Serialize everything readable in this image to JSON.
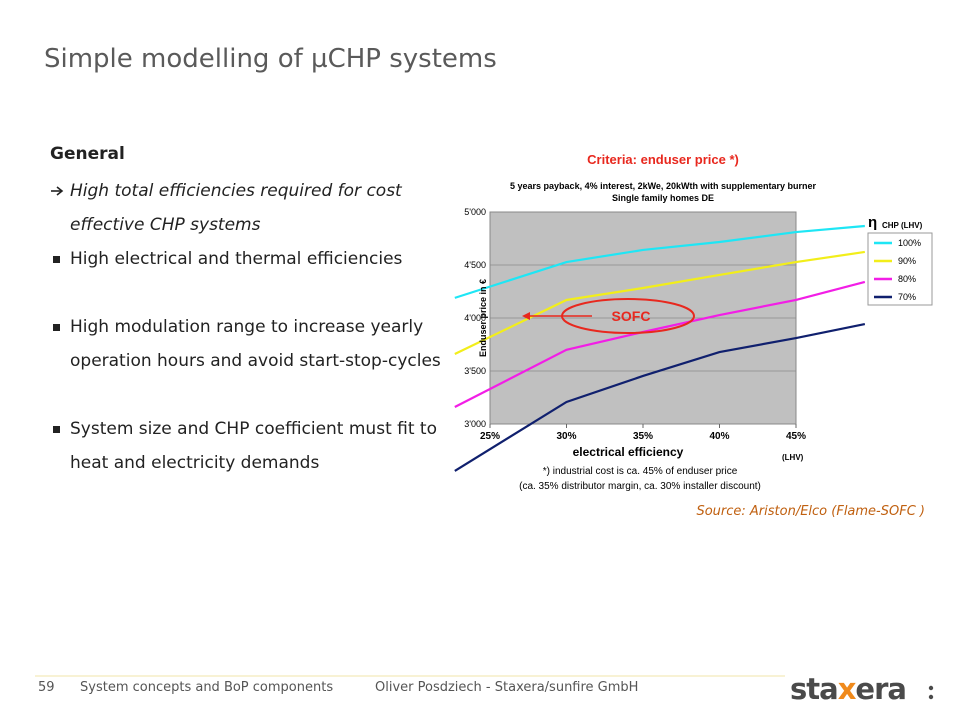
{
  "slide": {
    "title": "Simple modelling of µCHP systems",
    "heading": "General",
    "bullets": [
      "High total efficiencies required for cost effective CHP systems",
      "High electrical and thermal efficiencies",
      "High modulation range to increase yearly operation hours and avoid start-stop-cycles",
      "System size and CHP coefficient must fit to heat and electricity demands"
    ],
    "source": "Source: Ariston/Elco (Flame-SOFC )",
    "footer": {
      "page": "59",
      "section": "System concepts and BoP components",
      "author": "Oliver Posdziech - Staxera/sunfire GmbH"
    },
    "logo": {
      "parts": [
        "sta",
        "x",
        "era"
      ]
    }
  },
  "chart_data": {
    "type": "line",
    "title": "Criteria: enduser price *)",
    "subtitle": [
      "5 years payback, 4% interest, 2kWe, 20kWth with supplementary burner",
      "Single family homes DE"
    ],
    "y_label": "Enduser price in €",
    "x_label": "electrical efficiency",
    "x_label_note": "(LHV)",
    "footnote": [
      "*) industrial cost is ca. 45% of enduser price",
      "(ca. 35% distributor margin, ca. 30% installer discount)"
    ],
    "annotation": "SOFC",
    "legend_title": {
      "symbol": "η",
      "text": "CHP (LHV)"
    },
    "legend": "right",
    "grid": true,
    "x": [
      22.7,
      30,
      35,
      40,
      45,
      49.5
    ],
    "xlim": [
      25,
      45
    ],
    "xticks": [
      {
        "value": 25,
        "label": "25%"
      },
      {
        "value": 30,
        "label": "30%"
      },
      {
        "value": 35,
        "label": "35%"
      },
      {
        "value": 40,
        "label": "40%"
      },
      {
        "value": 45,
        "label": "45%"
      }
    ],
    "ylim": [
      3000,
      5000
    ],
    "yticks": [
      {
        "value": 3000,
        "label": "3'000"
      },
      {
        "value": 3500,
        "label": "3'500"
      },
      {
        "value": 4000,
        "label": "4'000"
      },
      {
        "value": 4500,
        "label": "4'500"
      },
      {
        "value": 5000,
        "label": "5'000"
      }
    ],
    "series": [
      {
        "name": "100%",
        "color": "#1ee6f5",
        "values": [
          4190,
          4528,
          4642,
          4717,
          4811,
          4868
        ]
      },
      {
        "name": "90%",
        "color": "#f2ee1a",
        "values": [
          3660,
          4170,
          4283,
          4406,
          4528,
          4623
        ]
      },
      {
        "name": "80%",
        "color": "#f21ee6",
        "values": [
          3160,
          3700,
          3868,
          4028,
          4170,
          4340
        ]
      },
      {
        "name": "70%",
        "color": "#10206e",
        "values": [
          2557,
          3208,
          3453,
          3679,
          3811,
          3943
        ]
      }
    ]
  }
}
